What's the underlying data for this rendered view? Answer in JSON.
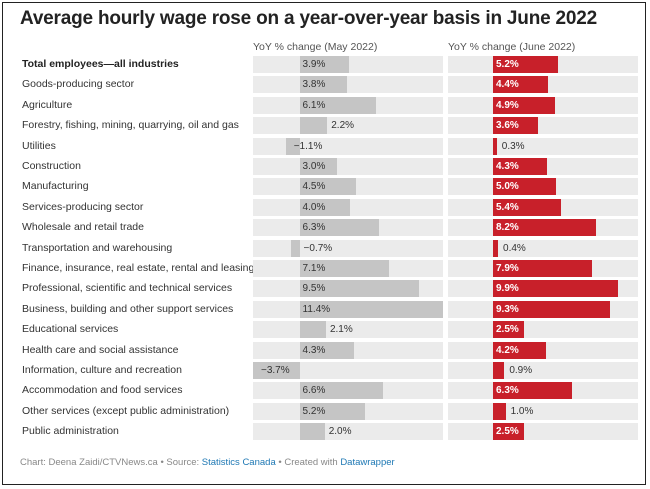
{
  "title": "Average hourly wage rose on a year-over-year basis in June 2022",
  "footer": {
    "chart_credit": "Chart: Deena Zaidi/CTVNews.ca",
    "separator1": " • Source: ",
    "source": "Statistics Canada",
    "separator2": " • Created with ",
    "tool": "Datawrapper"
  },
  "colors": {
    "may": "#c5c5c5",
    "june": "#c8202a",
    "background": "#ebebeb"
  },
  "chart_data": {
    "type": "bar",
    "orientation": "horizontal",
    "title": "Average hourly wage rose on a year-over-year basis in June 2022",
    "unit": "%",
    "series": [
      {
        "name": "YoY % change (May 2022)",
        "values": [
          3.9,
          3.8,
          6.1,
          2.2,
          -1.1,
          3.0,
          4.5,
          4.0,
          6.3,
          -0.7,
          7.1,
          9.5,
          11.4,
          2.1,
          4.3,
          -3.7,
          6.6,
          5.2,
          2.0
        ],
        "range": [
          -3.7,
          11.4
        ]
      },
      {
        "name": "YoY % change (June 2022)",
        "values": [
          5.2,
          4.4,
          4.9,
          3.6,
          0.3,
          4.3,
          5.0,
          5.4,
          8.2,
          0.4,
          7.9,
          9.9,
          9.3,
          2.5,
          4.2,
          0.9,
          6.3,
          1.0,
          2.5
        ],
        "range": [
          0,
          11.4
        ]
      }
    ],
    "categories": [
      "Total employees—all industries",
      "Goods-producing sector",
      "Agriculture",
      "Forestry, fishing, mining, quarrying, oil and gas",
      "Utilities",
      "Construction",
      "Manufacturing",
      "Services-producing sector",
      "Wholesale and retail trade",
      "Transportation and warehousing",
      "Finance, insurance, real estate, rental and leasing",
      "Professional, scientific and technical services",
      "Business, building and other support services",
      "Educational services",
      "Health care and social assistance",
      "Information, culture and recreation",
      "Accommodation and food services",
      "Other services (except public administration)",
      "Public administration"
    ],
    "bold_categories": [
      "Total employees—all industries"
    ]
  }
}
